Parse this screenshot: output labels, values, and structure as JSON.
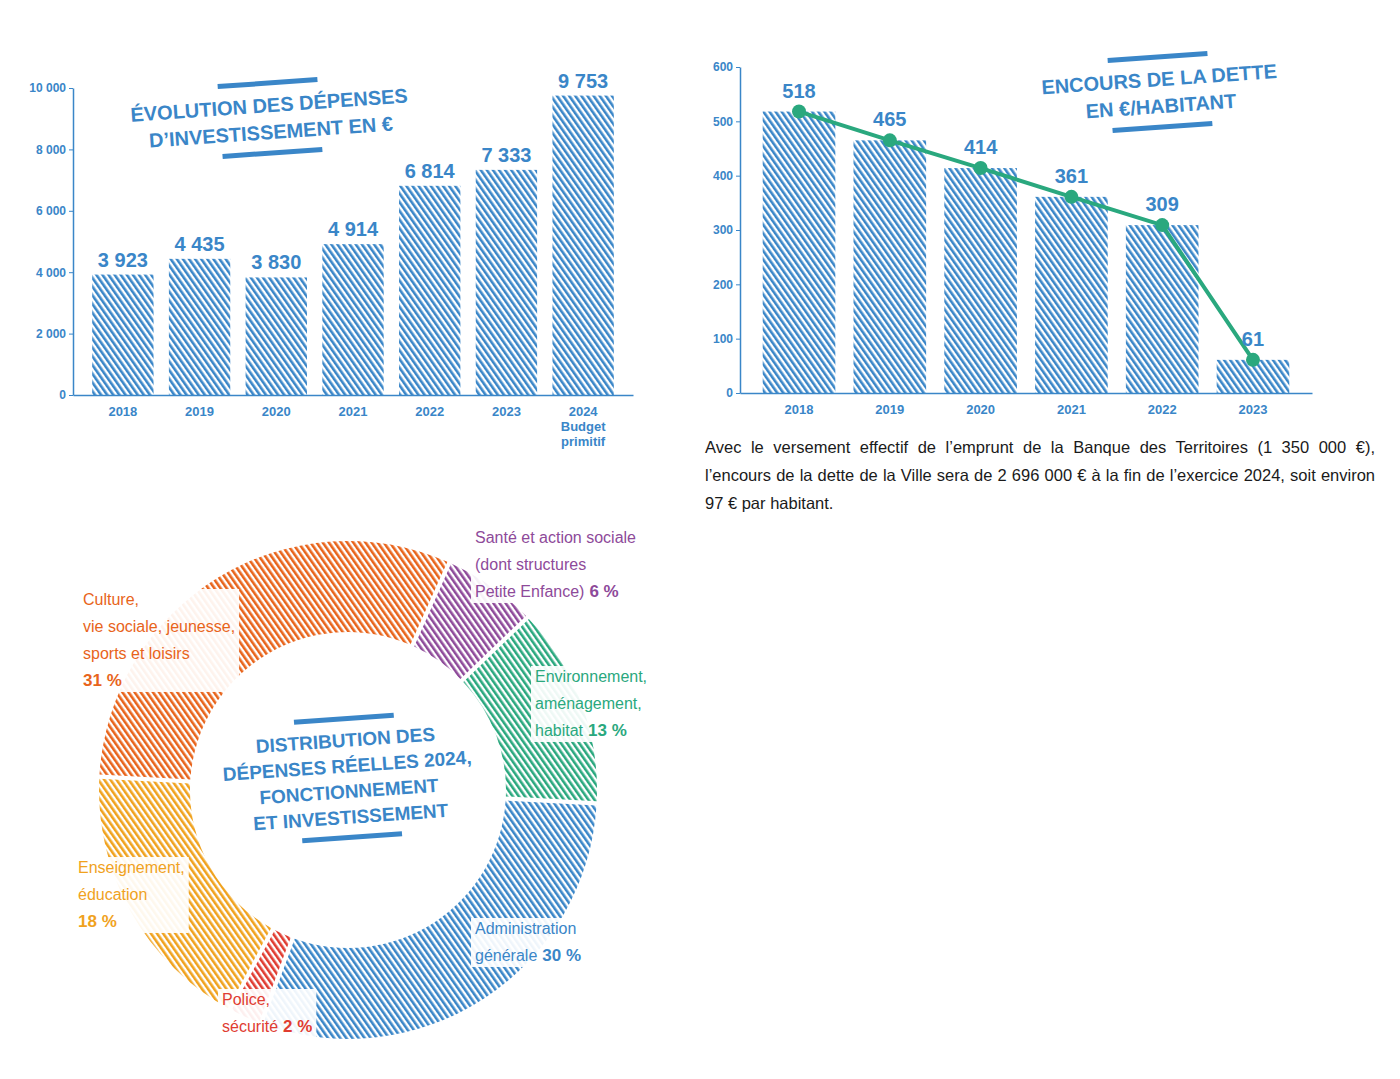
{
  "chart_data": [
    {
      "type": "bar",
      "title": "ÉVOLUTION DES DÉPENSES\nD’INVESTISSEMENT EN €",
      "categories": [
        "2018",
        "2019",
        "2020",
        "2021",
        "2022",
        "2023",
        "2024\nBudget\nprimitif"
      ],
      "values": [
        3923,
        4435,
        3830,
        4914,
        6814,
        7333,
        9753
      ],
      "value_labels": [
        "3 923",
        "4 435",
        "3 830",
        "4 914",
        "6 814",
        "7 333",
        "9 753"
      ],
      "color": "#3a86c8",
      "ylim": [
        0,
        10000
      ],
      "yticks": [
        0,
        {
          "value": 2000,
          "label": "2 000"
        },
        {
          "value": 4000,
          "label": "4 000"
        },
        {
          "value": 6000,
          "label": "6 000"
        },
        {
          "value": 8000,
          "label": "8 000"
        },
        {
          "value": 10000,
          "label": "10 000"
        }
      ],
      "data_labels": true
    },
    {
      "type": "bar",
      "title": "ENCOURS DE LA DETTE\nEN €/HABITANT",
      "categories": [
        "2018",
        "2019",
        "2020",
        "2021",
        "2022",
        "2023"
      ],
      "series": [
        {
          "type": "bar",
          "color": "#3a86c8",
          "values": [
            518,
            465,
            414,
            361,
            309,
            61
          ]
        },
        {
          "type": "line",
          "color": "#2aa87e",
          "marker": "circle",
          "values": [
            518,
            465,
            414,
            361,
            309,
            61
          ]
        }
      ],
      "ylim": [
        0,
        600
      ],
      "yticks": [
        0,
        100,
        200,
        300,
        400,
        500,
        600
      ],
      "data_labels": true,
      "annotation": "Avec le versement effectif de l’emprunt de la Banque des Territoires (1 350 000 €), l’encours de la dette de la Ville sera de 2 696 000 € à la fin de l’exercice 2024, soit environ 97 € par habitant."
    },
    {
      "type": "pie",
      "title": "DISTRIBUTION DES\nDÉPENSES RÉELLES 2024,\nFONCTIONNEMENT\nET INVESTISSEMENT",
      "categories": [
        "Santé et action sociale\n(dont structures\nPetite Enfance)",
        "Environnement,\naménagement,\nhabitat",
        "Administration\ngénérale",
        "Police,\nsécurité",
        "Enseignement,\néducation",
        "Culture,\nvie sociale, jeunesse,\nsports et loisirs"
      ],
      "values": [
        6,
        13,
        30,
        2,
        18,
        31
      ],
      "value_labels": [
        "6 %",
        "13 %",
        "30 %",
        "2 %",
        "18 %",
        "31 %"
      ],
      "colors": [
        "#8e4a9a",
        "#2aa87e",
        "#3a86c8",
        "#e03c31",
        "#f0a21e",
        "#e8641b"
      ],
      "data_labels": true
    }
  ]
}
